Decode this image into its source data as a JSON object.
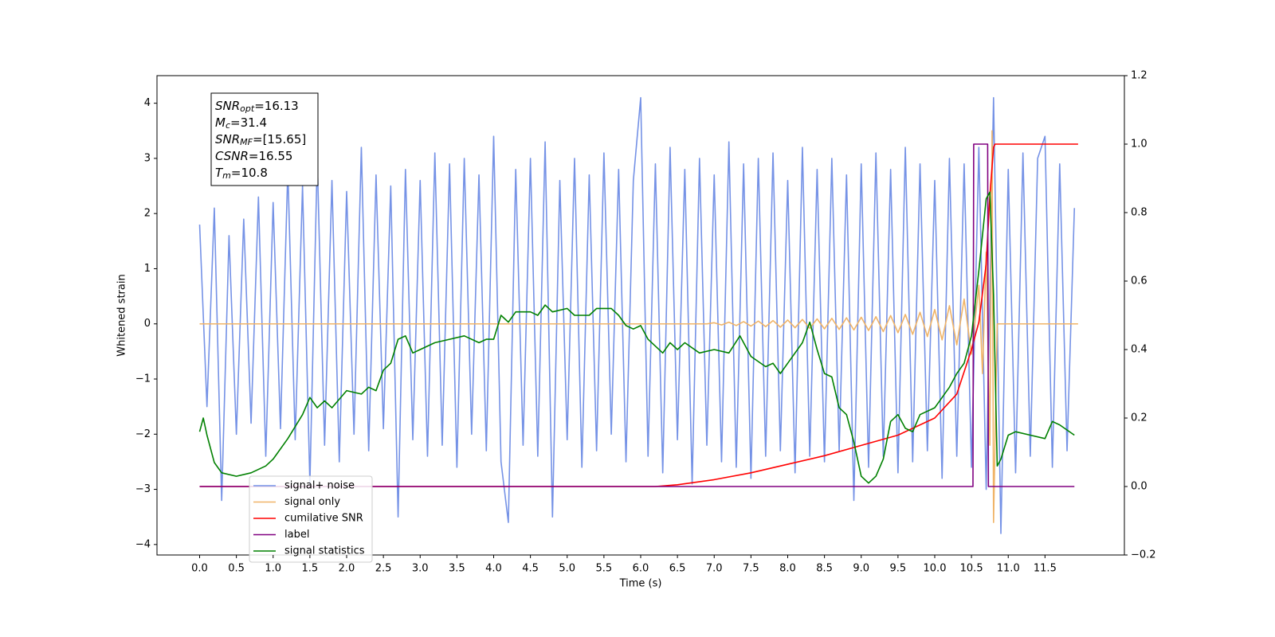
{
  "chart_data": {
    "type": "line",
    "xlabel": "Time (s)",
    "ylabel": "Whitened strain",
    "xlim": [
      -0.58,
      12.58
    ],
    "ylim": [
      -4.19,
      4.5
    ],
    "y2lim": [
      -0.2,
      1.2
    ],
    "xticks": [
      {
        "value": 0,
        "label": "0.0"
      },
      0.5,
      {
        "value": 1,
        "label": "1.0"
      },
      1.5,
      {
        "value": 2,
        "label": "2.0"
      },
      2.5,
      {
        "value": 3,
        "label": "3.0"
      },
      3.5,
      {
        "value": 4,
        "label": "4.0"
      },
      4.5,
      {
        "value": 5,
        "label": "5.0"
      },
      5.5,
      {
        "value": 6,
        "label": "6.0"
      },
      6.5,
      {
        "value": 7,
        "label": "7.0"
      },
      7.5,
      {
        "value": 8,
        "label": "8.0"
      },
      8.5,
      {
        "value": 9,
        "label": "9.0"
      },
      9.5,
      {
        "value": 10,
        "label": "10.0"
      },
      10.5,
      {
        "value": 11,
        "label": "11.0"
      },
      11.5
    ],
    "yticks": [
      {
        "value": -4,
        "label": "−4"
      },
      {
        "value": -3,
        "label": "−3"
      },
      {
        "value": -2,
        "label": "−2"
      },
      {
        "value": -1,
        "label": "−1"
      },
      0,
      1,
      2,
      3,
      4
    ],
    "y2ticks": [
      {
        "value": -0.2,
        "label": "−0.2"
      },
      {
        "value": 0,
        "label": "0.0"
      },
      0.2,
      0.4,
      0.6,
      0.8,
      {
        "value": 1,
        "label": "1.0"
      },
      1.2
    ],
    "legend_loc": "lower left",
    "grid": false,
    "annotation": [
      {
        "symbol": "SNR",
        "sub": "opt",
        "value": "=16.13"
      },
      {
        "symbol": "M",
        "sub": "c",
        "value": "=31.4"
      },
      {
        "symbol": "SNR",
        "sub": "MF",
        "value": "=[15.65]"
      },
      {
        "symbol": "CSNR",
        "value": "=16.55"
      },
      {
        "symbol": "T",
        "sub": "m",
        "value": "=10.8"
      }
    ],
    "series": [
      {
        "name": "signal+ noise",
        "color": "#7592e6",
        "x": [
          0,
          0.1,
          0.2,
          0.3,
          0.4,
          0.5,
          0.6,
          0.7,
          0.8,
          0.9,
          1,
          1.1,
          1.2,
          1.3,
          1.4,
          1.5,
          1.6,
          1.7,
          1.8,
          1.9,
          2,
          2.1,
          2.2,
          2.3,
          2.4,
          2.5,
          2.6,
          2.7,
          2.8,
          2.9,
          3,
          3.1,
          3.2,
          3.3,
          3.4,
          3.5,
          3.6,
          3.7,
          3.8,
          3.9,
          4,
          4.1,
          4.2,
          4.3,
          4.4,
          4.5,
          4.6,
          4.7,
          4.8,
          4.9,
          5,
          5.1,
          5.2,
          5.3,
          5.4,
          5.5,
          5.6,
          5.7,
          5.8,
          5.9,
          6,
          6.1,
          6.2,
          6.3,
          6.4,
          6.5,
          6.6,
          6.7,
          6.8,
          6.9,
          7,
          7.1,
          7.2,
          7.3,
          7.4,
          7.5,
          7.6,
          7.7,
          7.8,
          7.9,
          8,
          8.1,
          8.2,
          8.3,
          8.4,
          8.5,
          8.6,
          8.7,
          8.8,
          8.9,
          9,
          9.1,
          9.2,
          9.3,
          9.4,
          9.5,
          9.6,
          9.7,
          9.8,
          9.9,
          10,
          10.1,
          10.2,
          10.3,
          10.4,
          10.5,
          10.6,
          10.7,
          10.8,
          10.9,
          11,
          11.1,
          11.2,
          11.3,
          11.4,
          11.5,
          11.6,
          11.7,
          11.8,
          11.9
        ],
        "values": [
          1.8,
          -1.5,
          2.1,
          -3.2,
          1.6,
          -2.0,
          1.9,
          -1.8,
          2.3,
          -2.4,
          2.2,
          -1.9,
          2.8,
          -2.1,
          2.5,
          -2.9,
          3.0,
          -2.2,
          2.6,
          -2.5,
          2.4,
          -2.0,
          3.2,
          -2.3,
          2.7,
          -1.9,
          2.5,
          -3.5,
          2.8,
          -2.1,
          2.6,
          -2.4,
          3.1,
          -2.2,
          2.9,
          -2.6,
          3.0,
          -2.0,
          2.7,
          -2.3,
          3.4,
          -2.5,
          -3.6,
          2.8,
          -2.2,
          3.0,
          -2.4,
          3.3,
          -3.5,
          2.6,
          -2.1,
          3.0,
          -2.6,
          2.7,
          -2.3,
          3.1,
          -2.0,
          2.8,
          -2.5,
          2.6,
          4.1,
          -2.4,
          2.9,
          -2.7,
          3.2,
          -2.1,
          2.8,
          -2.9,
          3.0,
          -2.2,
          2.7,
          -2.5,
          3.3,
          -2.6,
          2.9,
          -2.8,
          3.0,
          -2.4,
          3.1,
          -2.3,
          2.6,
          -2.7,
          3.2,
          -2.4,
          2.8,
          -2.5,
          3.0,
          -2.3,
          2.7,
          -3.2,
          2.9,
          -2.6,
          3.1,
          -2.4,
          2.8,
          -2.7,
          3.2,
          -2.5,
          2.9,
          -2.3,
          2.6,
          -2.8,
          3.0,
          -2.4,
          2.9,
          -2.6,
          3.2,
          -3.0,
          4.1,
          -3.8,
          2.8,
          -2.7,
          3.1,
          -2.4,
          3.0,
          3.4,
          -2.6,
          2.9,
          -2.3,
          2.1
        ]
      },
      {
        "name": "signal only",
        "color": "#f0b468",
        "x": [
          0,
          6.9,
          7,
          7.1,
          7.2,
          7.3,
          7.4,
          7.5,
          7.6,
          7.7,
          7.8,
          7.9,
          8,
          8.1,
          8.2,
          8.3,
          8.4,
          8.5,
          8.6,
          8.7,
          8.8,
          8.9,
          9,
          9.1,
          9.2,
          9.3,
          9.4,
          9.5,
          9.6,
          9.7,
          9.8,
          9.9,
          10,
          10.1,
          10.2,
          10.3,
          10.4,
          10.5,
          10.6,
          10.65,
          10.7,
          10.75,
          10.78,
          10.8,
          10.85,
          11.95
        ],
        "values": [
          0,
          0,
          0.02,
          -0.02,
          0.03,
          -0.03,
          0.04,
          -0.04,
          0.05,
          -0.05,
          0.06,
          -0.06,
          0.07,
          -0.07,
          0.08,
          -0.08,
          0.09,
          -0.09,
          0.1,
          -0.1,
          0.11,
          -0.11,
          0.12,
          -0.12,
          0.13,
          -0.14,
          0.15,
          -0.16,
          0.17,
          -0.19,
          0.21,
          -0.23,
          0.26,
          -0.29,
          0.33,
          -0.38,
          0.45,
          -0.55,
          0.7,
          -0.9,
          1.3,
          -2.2,
          3.5,
          -3.6,
          0,
          0
        ]
      },
      {
        "name": "cumilative SNR",
        "color": "#ff0000",
        "axis": "y2",
        "x": [
          0,
          6.2,
          6.5,
          7,
          7.5,
          8,
          8.5,
          9,
          9.5,
          10,
          10.3,
          10.5,
          10.6,
          10.7,
          10.75,
          10.8,
          10.82,
          11.95
        ],
        "values": [
          0,
          0,
          0.005,
          0.02,
          0.04,
          0.065,
          0.09,
          0.12,
          0.15,
          0.2,
          0.27,
          0.4,
          0.48,
          0.65,
          0.85,
          0.99,
          1,
          1
        ]
      },
      {
        "name": "label",
        "color": "#800080",
        "axis": "y2",
        "x": [
          0,
          10.52,
          10.53,
          10.72,
          10.73,
          11.9
        ],
        "values": [
          0,
          0,
          1,
          1,
          0,
          0
        ]
      },
      {
        "name": "signal statistics",
        "color": "#008000",
        "axis": "y2",
        "x": [
          0,
          0.05,
          0.1,
          0.2,
          0.3,
          0.5,
          0.7,
          0.9,
          1,
          1.2,
          1.4,
          1.5,
          1.6,
          1.7,
          1.8,
          2,
          2.2,
          2.3,
          2.4,
          2.5,
          2.6,
          2.7,
          2.8,
          2.9,
          3,
          3.2,
          3.4,
          3.6,
          3.8,
          3.9,
          4,
          4.1,
          4.2,
          4.3,
          4.5,
          4.6,
          4.7,
          4.8,
          5,
          5.1,
          5.3,
          5.4,
          5.6,
          5.7,
          5.8,
          5.9,
          6,
          6.1,
          6.3,
          6.4,
          6.5,
          6.6,
          6.8,
          7,
          7.2,
          7.35,
          7.5,
          7.7,
          7.8,
          7.9,
          8,
          8.2,
          8.3,
          8.4,
          8.5,
          8.6,
          8.7,
          8.8,
          8.9,
          9,
          9.1,
          9.2,
          9.3,
          9.4,
          9.5,
          9.6,
          9.7,
          9.8,
          10,
          10.2,
          10.3,
          10.4,
          10.5,
          10.6,
          10.7,
          10.75,
          10.8,
          10.85,
          10.9,
          11,
          11.1,
          11.3,
          11.5,
          11.6,
          11.7,
          11.9
        ],
        "values": [
          0.16,
          0.2,
          0.15,
          0.07,
          0.04,
          0.03,
          0.04,
          0.06,
          0.08,
          0.14,
          0.21,
          0.26,
          0.23,
          0.25,
          0.23,
          0.28,
          0.27,
          0.29,
          0.28,
          0.34,
          0.36,
          0.43,
          0.44,
          0.39,
          0.4,
          0.42,
          0.43,
          0.44,
          0.42,
          0.43,
          0.43,
          0.5,
          0.48,
          0.51,
          0.51,
          0.5,
          0.53,
          0.51,
          0.52,
          0.5,
          0.5,
          0.52,
          0.52,
          0.5,
          0.47,
          0.46,
          0.47,
          0.43,
          0.39,
          0.42,
          0.4,
          0.42,
          0.39,
          0.4,
          0.39,
          0.44,
          0.38,
          0.35,
          0.36,
          0.33,
          0.36,
          0.42,
          0.48,
          0.4,
          0.33,
          0.32,
          0.23,
          0.21,
          0.13,
          0.03,
          0.01,
          0.03,
          0.08,
          0.19,
          0.21,
          0.17,
          0.16,
          0.21,
          0.23,
          0.29,
          0.33,
          0.36,
          0.44,
          0.63,
          0.84,
          0.86,
          0.56,
          0.06,
          0.08,
          0.15,
          0.16,
          0.15,
          0.14,
          0.19,
          0.18,
          0.15
        ]
      }
    ]
  }
}
